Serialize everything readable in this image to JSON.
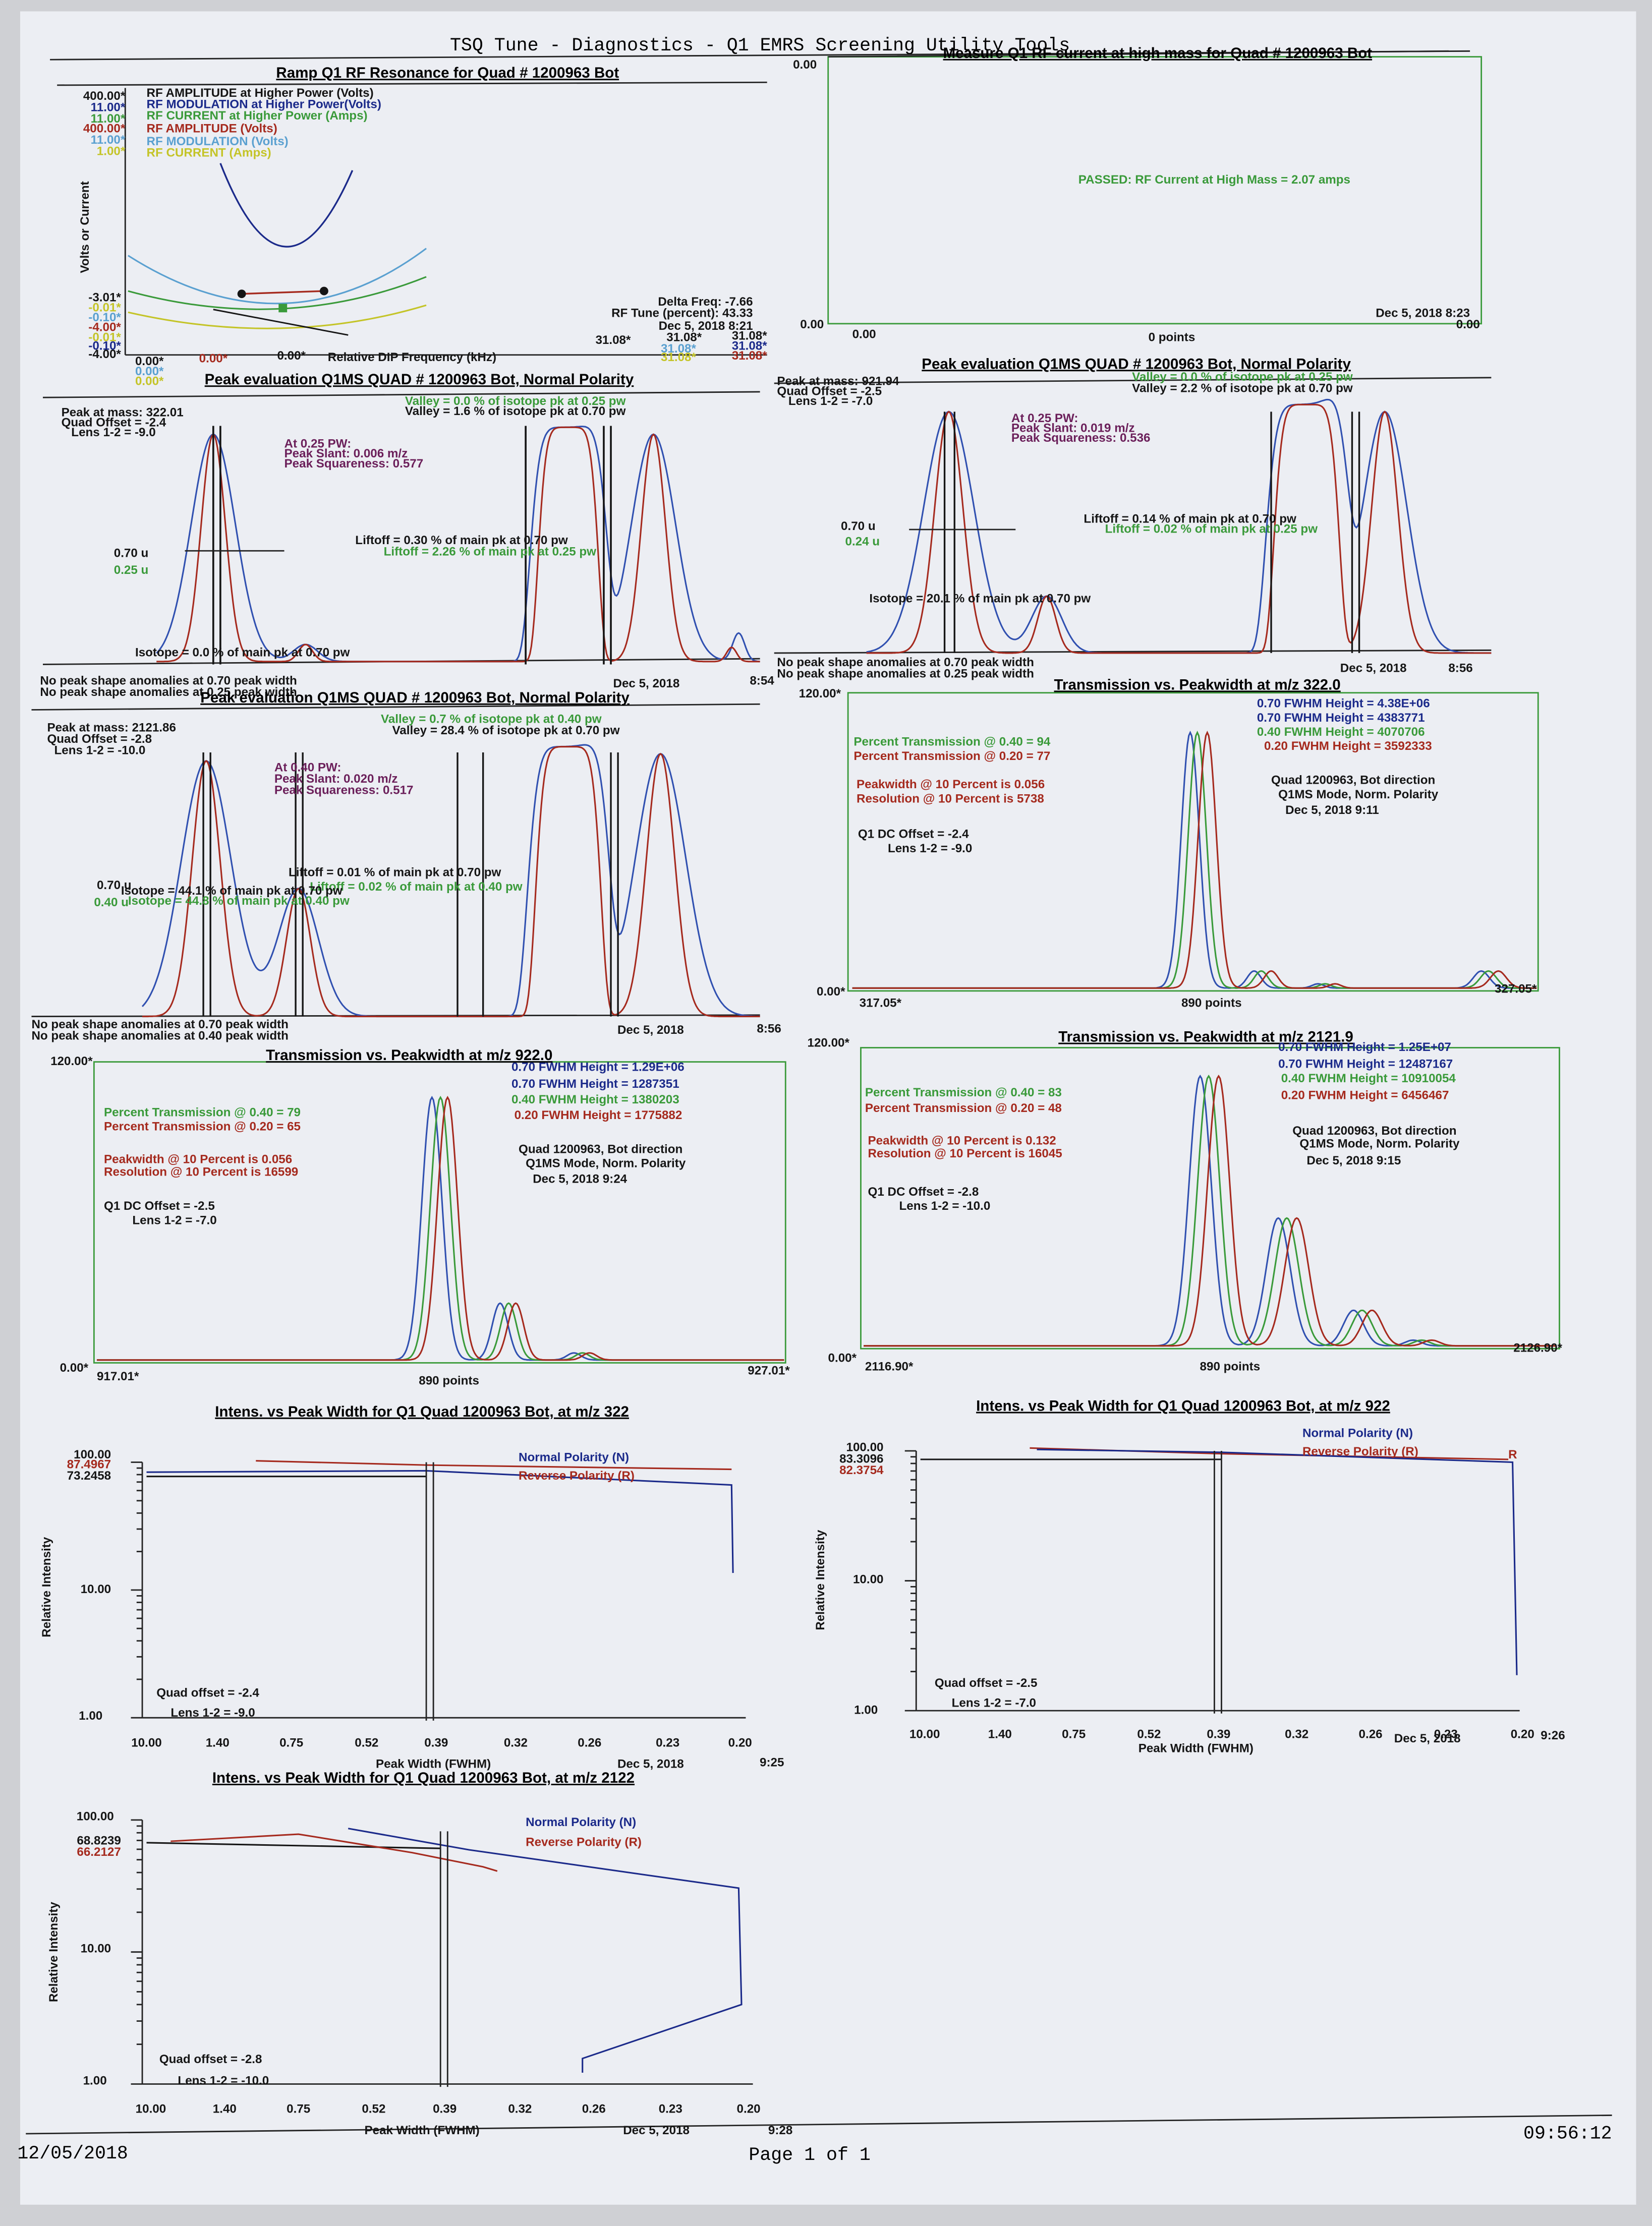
{
  "header": {
    "title": "TSQ Tune - Diagnostics - Q1 EMRS Screening Utility Tools",
    "date": "12/05/2018",
    "page": "Page 1 of 1",
    "time": "09:56:12"
  },
  "panels": {
    "rf_resonance": {
      "title": "Ramp Q1 RF Resonance for Quad # 1200963 Bot",
      "texts": [
        "RF AMPLITUDE at Higher Power (Volts)",
        "RF MODULATION at Higher Power(Volts)",
        "RF CURRENT at Higher Power (Amps)",
        "RF AMPLITUDE (Volts)",
        "RF MODULATION (Volts)",
        "RF CURRENT (Amps)",
        "400.00*",
        "11.00*",
        "11.00*",
        "400.00*",
        "11.00*",
        "1.00*",
        "Volts or Current",
        "-3.01*",
        "-0.01*",
        "-0.10*",
        "-4.00*",
        "-0.01*",
        "-0.10*",
        "-4.00*",
        "0.00*",
        "0.00*",
        "0.00*",
        "0.00*",
        "0.00*",
        "Relative DIP Frequency (kHz)",
        "Delta Freq:  -7.66",
        "RF Tune (percent):  43.33",
        "Dec 5, 2018   8:21",
        "31.08*",
        "31.08*",
        "31.08*",
        "31.08*",
        "31.08*",
        "31.08*",
        "31.08*"
      ]
    },
    "rf_current": {
      "title": "Measure Q1 RF current at high mass for Quad # 1200963 Bot",
      "texts": [
        "0.00",
        "PASSED: RF Current at High Mass = 2.07 amps",
        "0.00",
        "0.00",
        "0 points",
        "Dec 5, 2018   8:23",
        "0.00"
      ]
    },
    "peak_322": {
      "title": "Peak evaluation  Q1MS  QUAD # 1200963 Bot, Normal Polarity",
      "texts": [
        "Peak at mass: 322.01",
        "Quad Offset =  -2.4",
        "Lens 1-2 =  -9.0",
        "Valley = 0.0 % of isotope pk at 0.25 pw",
        "Valley = 1.6 % of isotope pk at 0.70 pw",
        "At 0.25 PW:",
        "Peak Slant: 0.006 m/z",
        "Peak Squareness: 0.577",
        "0.70 u",
        "0.25 u",
        "Liftoff = 0.30 % of main pk at 0.70 pw",
        "Liftoff = 2.26 % of main pk at 0.25 pw",
        "Isotope = 0.0 % of main pk at 0.70 pw",
        "Dec 5, 2018",
        "8:54",
        "No peak shape anomalies at 0.70 peak width",
        "No peak shape anomalies at 0.25 peak width"
      ]
    },
    "peak_922": {
      "title": "Peak evaluation  Q1MS  QUAD # 1200963 Bot, Normal Polarity",
      "texts": [
        "Peak at mass: 921.94",
        "Quad Offset =  -2.5",
        "Lens 1-2 =  -7.0",
        "Valley = 0.0 % of isotope pk at 0.25 pw",
        "Valley = 2.2 % of isotope pk at 0.70 pw",
        "At 0.25 PW:",
        "Peak Slant: 0.019 m/z",
        "Peak Squareness: 0.536",
        "0.70 u",
        "0.24 u",
        "Liftoff = 0.14 % of main pk at 0.70 pw",
        "Liftoff = 0.02 % of main pk at 0.25 pw",
        "Isotope = 20.1 % of main pk at 0.70 pw",
        "Dec 5, 2018",
        "8:56",
        "No peak shape anomalies at 0.70 peak width",
        "No peak shape anomalies at 0.25 peak width"
      ]
    },
    "peak_2122": {
      "title": "Peak evaluation  Q1MS  QUAD # 1200963 Bot, Normal Polarity",
      "texts": [
        "Peak at mass: 2121.86",
        "Quad Offset =  -2.8",
        "Lens 1-2 =  -10.0",
        "Valley = 0.7 % of isotope pk at 0.40 pw",
        "Valley = 28.4 % of isotope pk at 0.70 pw",
        "At 0.40 PW:",
        "Peak Slant: 0.020 m/z",
        "Peak Squareness: 0.517",
        "0.70 u",
        "0.40 u",
        "Liftoff = 0.01 % of main pk at 0.70 pw",
        "Liftoff = 0.02 % of main pk at 0.40 pw",
        "Isotope = 44.1 % of main pk at 0.70 pw",
        "Isotope = 44.8 % of main pk at 0.40 pw",
        "Dec 5, 2018",
        "8:56",
        "No peak shape anomalies at 0.70 peak width",
        "No peak shape anomalies at 0.40 peak width"
      ]
    },
    "trans_322": {
      "title": "Transmission vs. Peakwidth at m/z 322.0",
      "texts": [
        "120.00*",
        "0.70 FWHM Height = 4.38E+06",
        "0.70 FWHM Height = 4383771",
        "0.40 FWHM Height = 4070706",
        "0.20 FWHM Height = 3592333",
        "Percent Transmission @ 0.40 = 94",
        "Percent Transmission @ 0.20 = 77",
        "Peakwidth @ 10 Percent is 0.056",
        "Resolution @ 10 Percent is 5738",
        "Quad 1200963, Bot direction",
        "Q1MS Mode, Norm. Polarity",
        "Dec 5, 2018   9:11",
        "Q1 DC Offset =  -2.4",
        "Lens 1-2 =  -9.0",
        "0.00*",
        "317.05*",
        "890 points",
        "327.05*"
      ]
    },
    "trans_922": {
      "title": "Transmission vs. Peakwidth at m/z 922.0",
      "texts": [
        "120.00*",
        "0.70 FWHM Height = 1.29E+06",
        "0.70 FWHM Height = 1287351",
        "0.40 FWHM Height = 1380203",
        "0.20 FWHM Height = 1775882",
        "Percent Transmission @ 0.40 = 79",
        "Percent Transmission @ 0.20 = 65",
        "Peakwidth @ 10 Percent is 0.056",
        "Resolution @ 10 Percent is 16599",
        "Quad 1200963, Bot direction",
        "Q1MS Mode, Norm. Polarity",
        "Dec 5, 2018   9:24",
        "Q1 DC Offset =  -2.5",
        "Lens 1-2 =  -7.0",
        "0.00*",
        "917.01*",
        "890 points",
        "927.01*"
      ]
    },
    "trans_2122": {
      "title": "Transmission vs. Peakwidth at m/z 2121.9",
      "texts": [
        "120.00*",
        "0.70 FWHM Height = 1.25E+07",
        "0.70 FWHM Height = 12487167",
        "0.40 FWHM Height = 10910054",
        "0.20 FWHM Height = 6456467",
        "Percent Transmission @ 0.40 = 83",
        "Percent Transmission @ 0.20 = 48",
        "Peakwidth @ 10 Percent is 0.132",
        "Resolution @ 10 Percent is 16045",
        "Quad 1200963, Bot direction",
        "Q1MS Mode, Norm. Polarity",
        "Dec 5, 2018   9:15",
        "Q1 DC Offset =  -2.8",
        "Lens 1-2 =  -10.0",
        "0.00*",
        "2116.90*",
        "890 points",
        "2126.90*"
      ]
    },
    "intens_322": {
      "title": "Intens. vs Peak Width for Q1 Quad 1200963 Bot, at m/z 322",
      "texts": [
        "100.00",
        "87.4967",
        "73.2458",
        "10.00",
        "1.00",
        "Normal Polarity (N)",
        "Reverse Polarity (R)",
        "Relative Intensity",
        "Quad offset = -2.4",
        "Lens 1-2 =  -9.0",
        "10.00",
        "1.40",
        "0.75",
        "0.52",
        "0.39",
        "0.32",
        "0.26",
        "0.23",
        "0.20",
        "Peak Width (FWHM)",
        "Dec 5, 2018",
        "9:25"
      ]
    },
    "intens_922": {
      "title": "Intens. vs Peak Width for Q1 Quad 1200963 Bot, at m/z 922",
      "texts": [
        "100.00",
        "83.3096",
        "82.3754",
        "10.00",
        "1.00",
        "Normal Polarity (N)",
        "Reverse Polarity (R)",
        "R",
        "Relative Intensity",
        "Quad offset = -2.5",
        "Lens 1-2 =  -7.0",
        "10.00",
        "1.40",
        "0.75",
        "0.52",
        "0.39",
        "0.32",
        "0.26",
        "0.23",
        "0.20",
        "Peak Width (FWHM)",
        "Dec 5, 2018",
        "9:26"
      ]
    },
    "intens_2122": {
      "title": "Intens. vs Peak Width for Q1 Quad 1200963 Bot, at m/z 2122",
      "texts": [
        "100.00",
        "68.8239",
        "66.2127",
        "10.00",
        "1.00",
        "Normal Polarity (N)",
        "Reverse Polarity (R)",
        "Relative Intensity",
        "Quad offset = -2.8",
        "Lens 1-2 =  -10.0",
        "10.00",
        "1.40",
        "0.75",
        "0.52",
        "0.39",
        "0.32",
        "0.26",
        "0.23",
        "0.20",
        "Peak Width (FWHM)",
        "Dec 5, 2018",
        "9:28"
      ]
    }
  }
}
